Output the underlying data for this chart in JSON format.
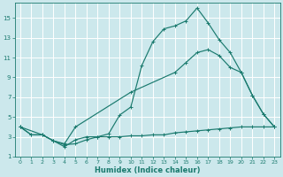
{
  "xlabel": "Humidex (Indice chaleur)",
  "bg_color": "#cce8ec",
  "grid_color": "#ffffff",
  "line_color": "#1a7a6e",
  "xlim": [
    -0.5,
    23.5
  ],
  "ylim": [
    1,
    16.5
  ],
  "yticks": [
    1,
    3,
    5,
    7,
    9,
    11,
    13,
    15
  ],
  "xticks": [
    0,
    1,
    2,
    3,
    4,
    5,
    6,
    7,
    8,
    9,
    10,
    11,
    12,
    13,
    14,
    15,
    16,
    17,
    18,
    19,
    20,
    21,
    22,
    23
  ],
  "line1_x": [
    0,
    1,
    2,
    3,
    4,
    5,
    6,
    7,
    8,
    9,
    10,
    11,
    12,
    13,
    14,
    15,
    16,
    17,
    18,
    19,
    20,
    21,
    22,
    23
  ],
  "line1_y": [
    4.0,
    3.2,
    3.2,
    2.6,
    2.0,
    2.7,
    3.0,
    3.0,
    3.0,
    3.0,
    3.1,
    3.1,
    3.2,
    3.2,
    3.4,
    3.5,
    3.6,
    3.7,
    3.8,
    3.9,
    4.0,
    4.0,
    4.0,
    4.0
  ],
  "line2_x": [
    0,
    2,
    3,
    4,
    5,
    6,
    7,
    8,
    9,
    10,
    11,
    12,
    13,
    14,
    15,
    16,
    17,
    18,
    19,
    20,
    21,
    22,
    23
  ],
  "line2_y": [
    4.0,
    3.2,
    2.6,
    2.2,
    2.3,
    2.7,
    3.0,
    3.3,
    5.2,
    6.0,
    10.2,
    12.6,
    13.9,
    14.2,
    14.7,
    16.0,
    14.5,
    12.8,
    11.5,
    9.5,
    7.2,
    5.3,
    4.0
  ],
  "line3_x": [
    0,
    1,
    2,
    3,
    4,
    5,
    10,
    14,
    15,
    16,
    17,
    18,
    19,
    20,
    21,
    22,
    23
  ],
  "line3_y": [
    4.0,
    3.2,
    3.2,
    2.6,
    2.3,
    4.0,
    7.5,
    9.5,
    10.5,
    11.5,
    11.8,
    11.2,
    10.0,
    9.5,
    7.2,
    5.3,
    4.0
  ]
}
